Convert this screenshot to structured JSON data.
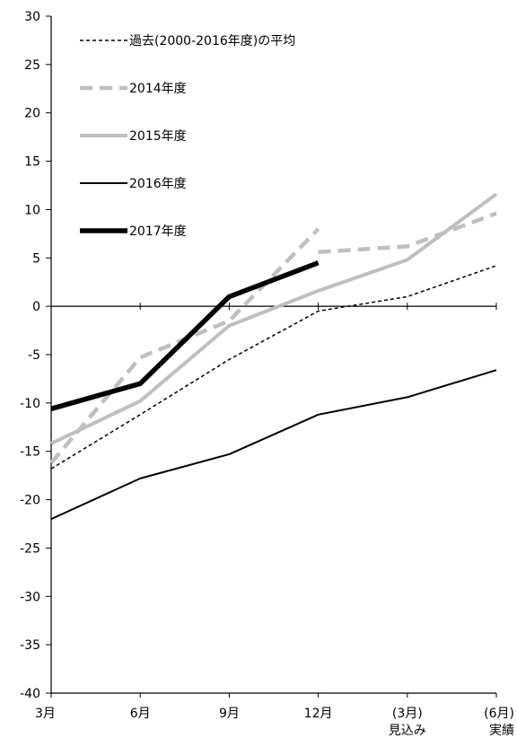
{
  "chart_data": {
    "type": "line",
    "categories": [
      "3月",
      "6月",
      "9月",
      "12月",
      "(3月)\n見込み",
      "(6月)\n実績"
    ],
    "ylim": [
      -40,
      30
    ],
    "yticks": [
      -40,
      -35,
      -30,
      -25,
      -20,
      -15,
      -10,
      -5,
      0,
      5,
      10,
      15,
      20,
      25,
      30
    ],
    "grid": false,
    "legend_position": "top-left",
    "series": [
      {
        "name": "過去(2000-2016年度)の平均",
        "color": "#000000",
        "style": "dashed-thin",
        "values": [
          -16.8,
          -11.2,
          -5.5,
          -0.5,
          1.0,
          4.2
        ]
      },
      {
        "name": "2014年度",
        "color": "#bfbfbf",
        "style": "dashed-thick",
        "values": [
          -16.2,
          -5.3,
          -1.5,
          8.0,
          null,
          null
        ],
        "extra_segment": [
          [
            3,
            5.6
          ],
          [
            4,
            6.2
          ],
          [
            5,
            9.6
          ]
        ]
      },
      {
        "name": "2015年度",
        "color": "#bfbfbf",
        "style": "solid-thick",
        "values": [
          -14.2,
          -9.8,
          -2.0,
          1.6,
          4.8,
          11.6
        ]
      },
      {
        "name": "2016年度",
        "color": "#000000",
        "style": "solid-thin",
        "values": [
          -22.0,
          -17.8,
          -15.3,
          -11.2,
          -9.4,
          -6.6
        ]
      },
      {
        "name": "2017年度",
        "color": "#000000",
        "style": "solid-bold",
        "values": [
          -10.6,
          -8.0,
          1.0,
          4.5,
          null,
          null
        ]
      }
    ]
  }
}
